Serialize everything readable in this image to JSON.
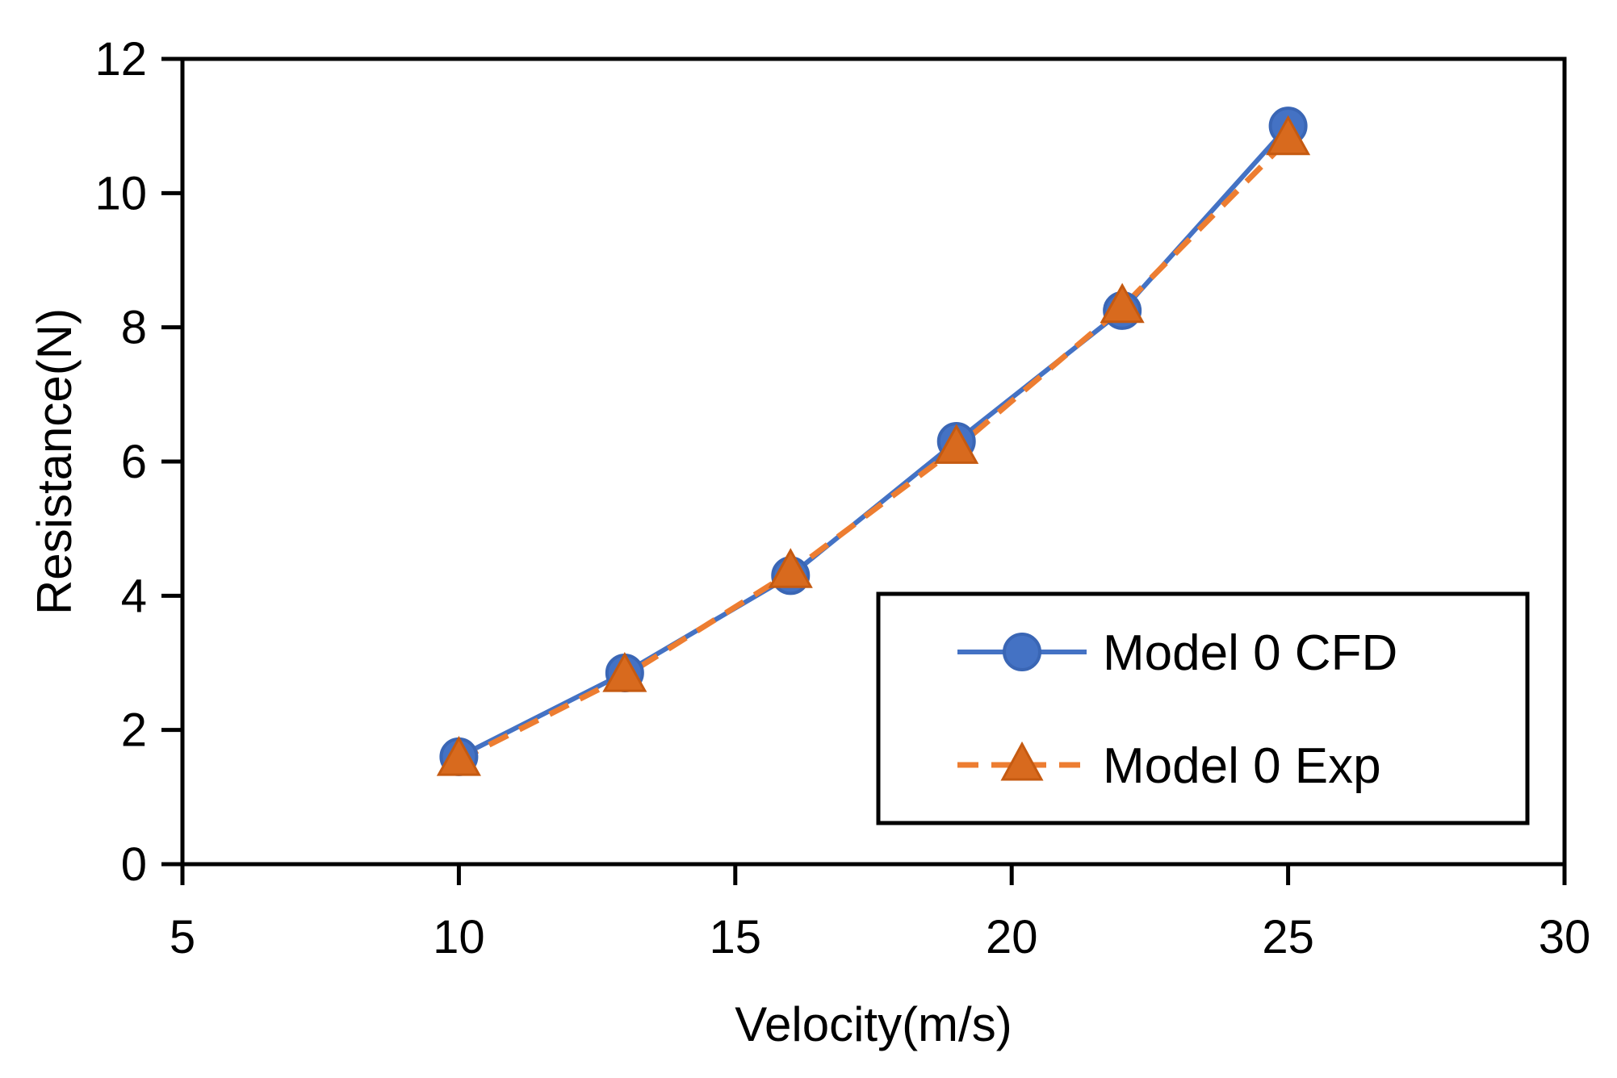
{
  "chart_data": {
    "type": "line",
    "title": "",
    "xlabel": "Velocity(m/s)",
    "ylabel": "Resistance(N)",
    "xlim": [
      5,
      30
    ],
    "ylim": [
      0,
      12
    ],
    "xticks": [
      5,
      10,
      15,
      20,
      25,
      30
    ],
    "yticks": [
      0,
      2,
      4,
      6,
      8,
      10,
      12
    ],
    "grid": false,
    "legend_position": "bottom-right",
    "series": [
      {
        "name": "Model 0 CFD",
        "marker": "circle",
        "line_style": "solid",
        "color": "#4472C4",
        "x": [
          10,
          13,
          16,
          19,
          22,
          25
        ],
        "y": [
          1.6,
          2.85,
          4.3,
          6.3,
          8.25,
          11.0
        ]
      },
      {
        "name": "Model 0 Exp",
        "marker": "triangle",
        "line_style": "dashed",
        "color": "#ED7D31",
        "x": [
          10,
          13,
          16,
          19,
          22,
          25
        ],
        "y": [
          1.55,
          2.8,
          4.35,
          6.2,
          8.3,
          10.8
        ]
      }
    ]
  }
}
